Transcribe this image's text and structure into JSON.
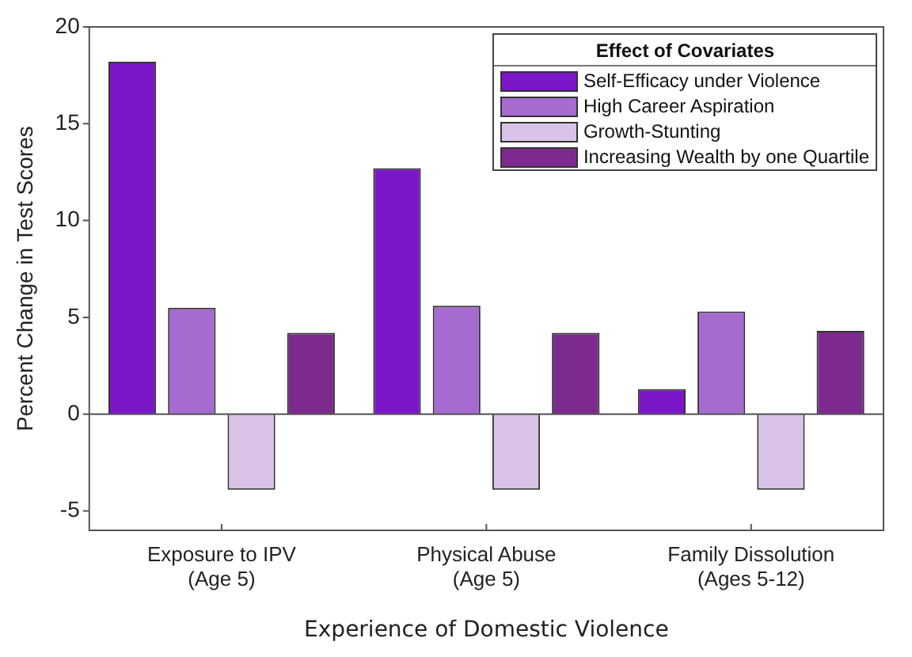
{
  "chart_data": {
    "type": "bar",
    "xlabel": "Experience of Domestic Violence",
    "ylabel": "Percent Change in Test Scores",
    "legend_title": "Effect of Covariates",
    "categories": [
      "Exposure to IPV\n(Age 5)",
      "Physical Abuse\n(Age 5)",
      "Family Dissolution\n(Ages 5-12)"
    ],
    "series": [
      {
        "name": "Self-Efficacy under Violence",
        "color": "#7b16c8",
        "values": [
          18.2,
          12.7,
          1.3
        ]
      },
      {
        "name": "High Career Aspiration",
        "color": "#a66ad0",
        "values": [
          5.5,
          5.6,
          5.3
        ]
      },
      {
        "name": "Growth-Stunting",
        "color": "#d9c3e6",
        "values": [
          -3.9,
          -3.9,
          -3.9
        ]
      },
      {
        "name": "Increasing Wealth by one Quartile",
        "color": "#7d2a8e",
        "values": [
          4.2,
          4.2,
          4.3
        ]
      }
    ],
    "ref_lines": [
      {
        "axis": "y",
        "value": 0,
        "color": "#555555"
      }
    ],
    "ylim": [
      -6,
      20
    ],
    "yticks": [
      -5,
      0,
      5,
      10,
      15,
      20
    ],
    "grid": false,
    "legend": "top right"
  }
}
